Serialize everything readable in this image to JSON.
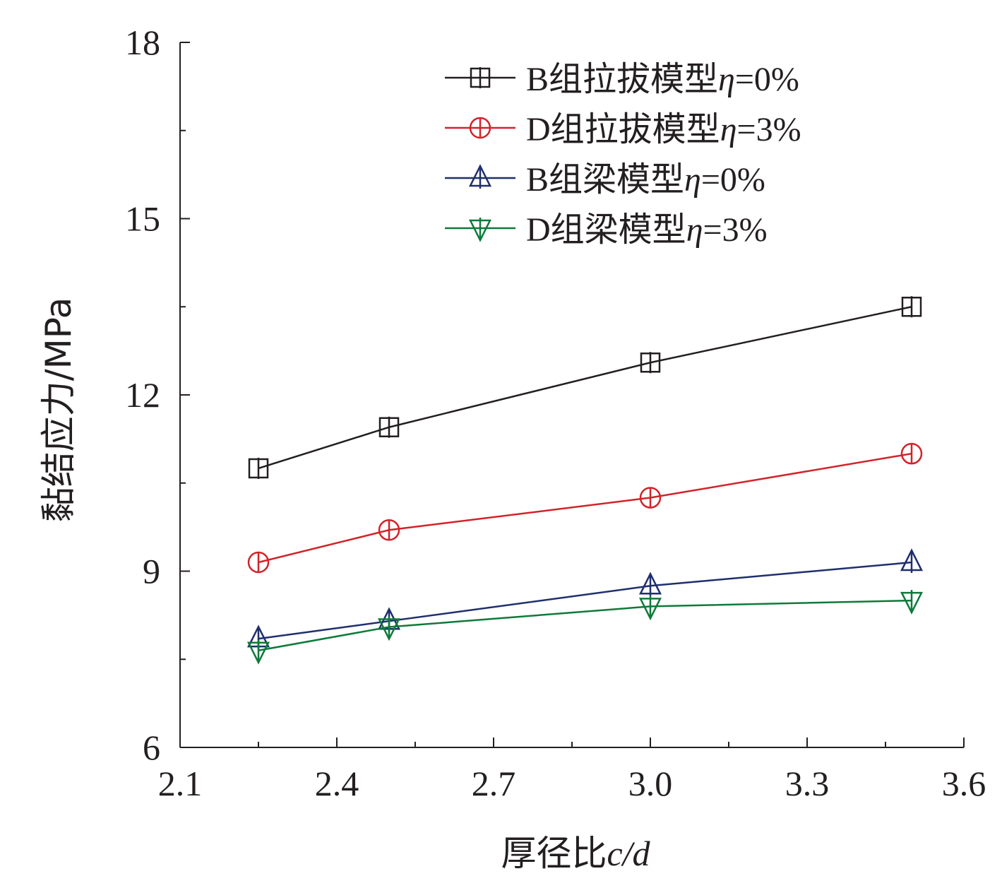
{
  "chart_data": {
    "type": "line",
    "xlabel_prefix": "厚径比",
    "xlabel_var": "c/d",
    "ylabel": "黏结应力/MPa",
    "xlim": [
      2.1,
      3.6
    ],
    "ylim": [
      6,
      18
    ],
    "xticks": [
      "2.1",
      "2.4",
      "2.7",
      "3.0",
      "3.3",
      "3.6"
    ],
    "yticks": [
      "6",
      "9",
      "12",
      "15",
      "18"
    ],
    "x": [
      2.25,
      2.5,
      3.0,
      3.5
    ],
    "legend_position": "top-right",
    "series": [
      {
        "name_prefix": "B组拉拔模型",
        "name_var": "η",
        "name_suffix": "=0%",
        "color": "#231f20",
        "marker": "square",
        "values": [
          10.75,
          11.45,
          12.55,
          13.5
        ]
      },
      {
        "name_prefix": "D组拉拔模型",
        "name_var": "η",
        "name_suffix": "=3%",
        "color": "#d2232a",
        "marker": "circle",
        "values": [
          9.15,
          9.7,
          10.25,
          11.0
        ]
      },
      {
        "name_prefix": "B组梁模型",
        "name_var": "η",
        "name_suffix": "=0%",
        "color": "#1f2f6e",
        "marker": "triangle-up",
        "values": [
          7.85,
          8.15,
          8.75,
          9.15
        ]
      },
      {
        "name_prefix": "D组梁模型",
        "name_var": "η",
        "name_suffix": "=3%",
        "color": "#0e7a3a",
        "marker": "triangle-down",
        "values": [
          7.65,
          8.05,
          8.4,
          8.5
        ]
      }
    ]
  }
}
